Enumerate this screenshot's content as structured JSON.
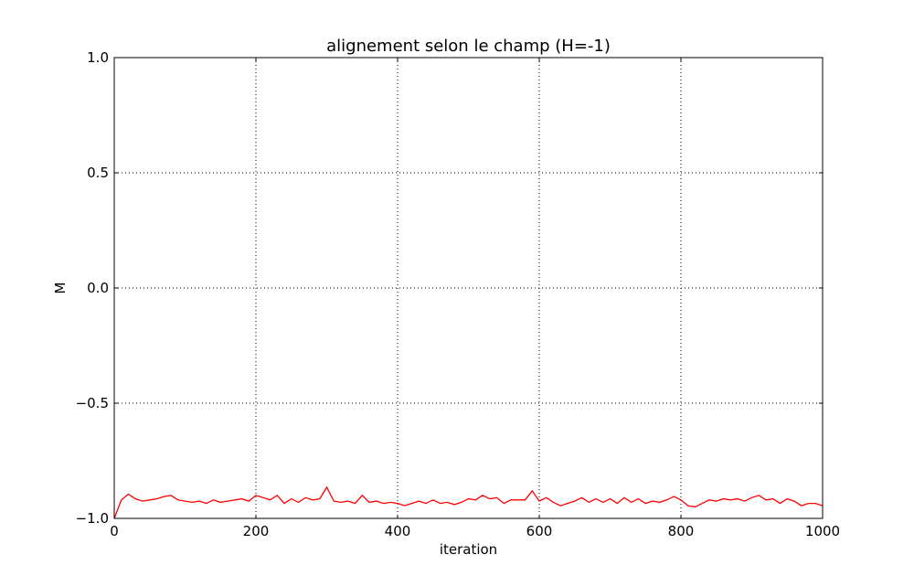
{
  "chart_data": {
    "type": "line",
    "title": "alignement selon le champ (H=-1)",
    "xlabel": "iteration",
    "ylabel": "M",
    "xlim": [
      0,
      1000
    ],
    "ylim": [
      -1.0,
      1.0
    ],
    "xticks": [
      "0",
      "200",
      "400",
      "600",
      "800",
      "1000"
    ],
    "yticks": [
      "−1.0",
      "−0.5",
      "0.0",
      "0.5",
      "1.0"
    ],
    "grid": true,
    "legend": "none",
    "series": [
      {
        "color": "#ff0000",
        "x_step": 10,
        "x": [
          0,
          10,
          20,
          30,
          40,
          50,
          60,
          70,
          80,
          90,
          100,
          110,
          120,
          130,
          140,
          150,
          160,
          170,
          180,
          190,
          200,
          210,
          220,
          230,
          240,
          250,
          260,
          270,
          280,
          290,
          300,
          310,
          320,
          330,
          340,
          350,
          360,
          370,
          380,
          390,
          400,
          410,
          420,
          430,
          440,
          450,
          460,
          470,
          480,
          490,
          500,
          510,
          520,
          530,
          540,
          550,
          560,
          570,
          580,
          590,
          600,
          610,
          620,
          630,
          640,
          650,
          660,
          670,
          680,
          690,
          700,
          710,
          720,
          730,
          740,
          750,
          760,
          770,
          780,
          790,
          800,
          810,
          820,
          830,
          840,
          850,
          860,
          870,
          880,
          890,
          900,
          910,
          920,
          930,
          940,
          950,
          960,
          970,
          980,
          990,
          1000
        ],
        "values": [
          -1.0,
          -0.92,
          -0.895,
          -0.915,
          -0.925,
          -0.92,
          -0.915,
          -0.905,
          -0.9,
          -0.92,
          -0.925,
          -0.93,
          -0.925,
          -0.935,
          -0.92,
          -0.93,
          -0.925,
          -0.92,
          -0.915,
          -0.925,
          -0.9,
          -0.91,
          -0.92,
          -0.9,
          -0.935,
          -0.915,
          -0.93,
          -0.91,
          -0.92,
          -0.915,
          -0.865,
          -0.925,
          -0.93,
          -0.925,
          -0.935,
          -0.9,
          -0.93,
          -0.925,
          -0.935,
          -0.93,
          -0.935,
          -0.945,
          -0.935,
          -0.925,
          -0.935,
          -0.92,
          -0.935,
          -0.93,
          -0.94,
          -0.93,
          -0.915,
          -0.92,
          -0.9,
          -0.915,
          -0.91,
          -0.935,
          -0.92,
          -0.92,
          -0.92,
          -0.88,
          -0.925,
          -0.91,
          -0.93,
          -0.945,
          -0.935,
          -0.925,
          -0.91,
          -0.93,
          -0.915,
          -0.93,
          -0.915,
          -0.935,
          -0.91,
          -0.93,
          -0.915,
          -0.935,
          -0.925,
          -0.93,
          -0.92,
          -0.905,
          -0.92,
          -0.945,
          -0.95,
          -0.935,
          -0.92,
          -0.925,
          -0.915,
          -0.92,
          -0.915,
          -0.925,
          -0.91,
          -0.9,
          -0.92,
          -0.915,
          -0.935,
          -0.915,
          -0.925,
          -0.945,
          -0.935,
          -0.935,
          -0.945
        ]
      }
    ]
  }
}
